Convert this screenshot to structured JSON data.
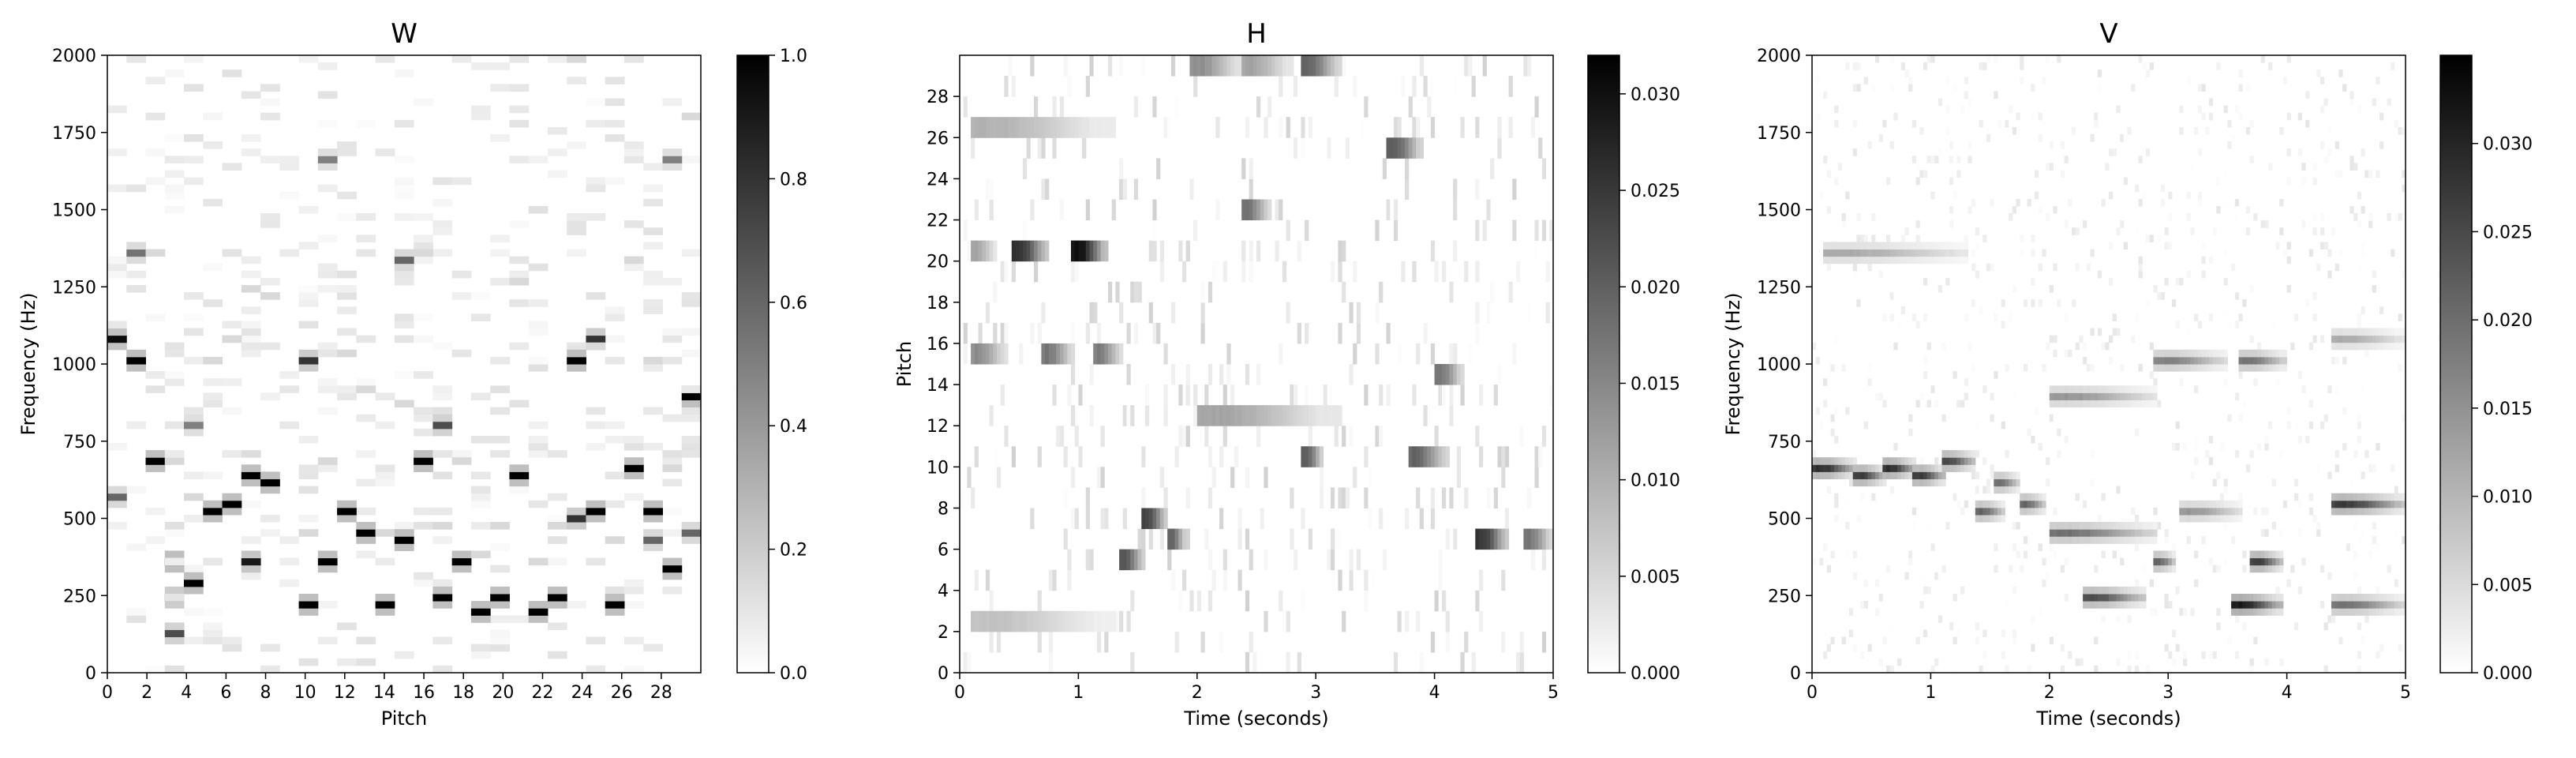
{
  "chart_data": [
    {
      "type": "heatmap",
      "title": "W",
      "xlabel": "Pitch",
      "ylabel": "Frequency (Hz)",
      "xlim": [
        0,
        30
      ],
      "ylim": [
        0,
        2000
      ],
      "xticks": [
        0,
        2,
        4,
        6,
        8,
        10,
        12,
        14,
        16,
        18,
        20,
        22,
        24,
        26,
        28
      ],
      "yticks": [
        0,
        250,
        500,
        750,
        1000,
        1250,
        1500,
        1750,
        2000
      ],
      "colorbar": {
        "min": 0.0,
        "max": 1.0,
        "ticks": [
          "0.0",
          "0.2",
          "0.4",
          "0.6",
          "0.8",
          "1.0"
        ],
        "colormap": "Greys"
      },
      "grid": false,
      "approx_peak_cells": [
        {
          "pitch": 0,
          "freq_hz": 1060,
          "value": 0.95
        },
        {
          "pitch": 0,
          "freq_hz": 560,
          "value": 0.6
        },
        {
          "pitch": 1,
          "freq_hz": 1000,
          "value": 1.0
        },
        {
          "pitch": 1,
          "freq_hz": 1340,
          "value": 0.55
        },
        {
          "pitch": 2,
          "freq_hz": 680,
          "value": 1.0
        },
        {
          "pitch": 3,
          "freq_hz": 340,
          "value": 1.0
        },
        {
          "pitch": 3,
          "freq_hz": 230,
          "value": 0.8
        },
        {
          "pitch": 3,
          "freq_hz": 120,
          "value": 0.7
        },
        {
          "pitch": 4,
          "freq_hz": 280,
          "value": 1.0
        },
        {
          "pitch": 4,
          "freq_hz": 790,
          "value": 0.5
        },
        {
          "pitch": 5,
          "freq_hz": 500,
          "value": 1.0
        },
        {
          "pitch": 6,
          "freq_hz": 540,
          "value": 1.0
        },
        {
          "pitch": 7,
          "freq_hz": 620,
          "value": 1.0
        },
        {
          "pitch": 7,
          "freq_hz": 350,
          "value": 0.9
        },
        {
          "pitch": 8,
          "freq_hz": 600,
          "value": 1.0
        },
        {
          "pitch": 10,
          "freq_hz": 220,
          "value": 1.0
        },
        {
          "pitch": 10,
          "freq_hz": 1000,
          "value": 0.8
        },
        {
          "pitch": 11,
          "freq_hz": 340,
          "value": 1.0
        },
        {
          "pitch": 11,
          "freq_hz": 1660,
          "value": 0.5
        },
        {
          "pitch": 12,
          "freq_hz": 510,
          "value": 1.0
        },
        {
          "pitch": 13,
          "freq_hz": 450,
          "value": 1.0
        },
        {
          "pitch": 14,
          "freq_hz": 220,
          "value": 1.0
        },
        {
          "pitch": 15,
          "freq_hz": 430,
          "value": 1.0
        },
        {
          "pitch": 15,
          "freq_hz": 1330,
          "value": 0.6
        },
        {
          "pitch": 16,
          "freq_hz": 670,
          "value": 1.0
        },
        {
          "pitch": 17,
          "freq_hz": 230,
          "value": 1.0
        },
        {
          "pitch": 17,
          "freq_hz": 790,
          "value": 0.7
        },
        {
          "pitch": 18,
          "freq_hz": 340,
          "value": 1.0
        },
        {
          "pitch": 19,
          "freq_hz": 190,
          "value": 1.0
        },
        {
          "pitch": 20,
          "freq_hz": 230,
          "value": 1.0
        },
        {
          "pitch": 21,
          "freq_hz": 630,
          "value": 1.0
        },
        {
          "pitch": 22,
          "freq_hz": 180,
          "value": 1.0
        },
        {
          "pitch": 23,
          "freq_hz": 230,
          "value": 1.0
        },
        {
          "pitch": 24,
          "freq_hz": 490,
          "value": 0.8
        },
        {
          "pitch": 24,
          "freq_hz": 990,
          "value": 1.0
        },
        {
          "pitch": 25,
          "freq_hz": 1060,
          "value": 0.8
        },
        {
          "pitch": 25,
          "freq_hz": 520,
          "value": 1.0
        },
        {
          "pitch": 26,
          "freq_hz": 210,
          "value": 1.0
        },
        {
          "pitch": 27,
          "freq_hz": 660,
          "value": 1.0
        },
        {
          "pitch": 28,
          "freq_hz": 500,
          "value": 1.0
        },
        {
          "pitch": 28,
          "freq_hz": 420,
          "value": 0.6
        },
        {
          "pitch": 29,
          "freq_hz": 330,
          "value": 1.0
        },
        {
          "pitch": 29,
          "freq_hz": 1660,
          "value": 0.5
        },
        {
          "pitch": 30,
          "freq_hz": 890,
          "value": 1.0
        },
        {
          "pitch": 30,
          "freq_hz": 450,
          "value": 0.6
        }
      ]
    },
    {
      "type": "heatmap",
      "title": "H",
      "xlabel": "Time (seconds)",
      "ylabel": "Pitch",
      "xlim": [
        0,
        5
      ],
      "ylim": [
        0,
        30
      ],
      "xticks": [
        0,
        1,
        2,
        3,
        4,
        5
      ],
      "yticks": [
        0,
        2,
        4,
        6,
        8,
        10,
        12,
        14,
        16,
        18,
        20,
        22,
        24,
        26,
        28
      ],
      "colorbar": {
        "min": 0.0,
        "max": 0.032,
        "ticks": [
          "0.000",
          "0.005",
          "0.010",
          "0.015",
          "0.020",
          "0.025",
          "0.030"
        ],
        "colormap": "Greys"
      },
      "grid": false,
      "approx_activations": [
        {
          "pitch": 20,
          "t_start": 0.45,
          "t_end": 0.75,
          "value": 0.028
        },
        {
          "pitch": 20,
          "t_start": 0.95,
          "t_end": 1.25,
          "value": 0.032
        },
        {
          "pitch": 20,
          "t_start": 0.1,
          "t_end": 0.3,
          "value": 0.012
        },
        {
          "pitch": 15,
          "t_start": 0.1,
          "t_end": 0.4,
          "value": 0.015
        },
        {
          "pitch": 15,
          "t_start": 0.7,
          "t_end": 0.95,
          "value": 0.018
        },
        {
          "pitch": 15,
          "t_start": 1.15,
          "t_end": 1.35,
          "value": 0.017
        },
        {
          "pitch": 7,
          "t_start": 1.55,
          "t_end": 1.75,
          "value": 0.025
        },
        {
          "pitch": 6,
          "t_start": 1.75,
          "t_end": 1.9,
          "value": 0.02
        },
        {
          "pitch": 5,
          "t_start": 1.35,
          "t_end": 1.55,
          "value": 0.022
        },
        {
          "pitch": 29,
          "t_start": 1.95,
          "t_end": 2.35,
          "value": 0.015
        },
        {
          "pitch": 29,
          "t_start": 2.4,
          "t_end": 2.8,
          "value": 0.012
        },
        {
          "pitch": 29,
          "t_start": 2.9,
          "t_end": 3.2,
          "value": 0.02
        },
        {
          "pitch": 12,
          "t_start": 2.0,
          "t_end": 3.2,
          "value": 0.012
        },
        {
          "pitch": 10,
          "t_start": 2.9,
          "t_end": 3.05,
          "value": 0.022
        },
        {
          "pitch": 10,
          "t_start": 3.8,
          "t_end": 4.1,
          "value": 0.02
        },
        {
          "pitch": 6,
          "t_start": 4.35,
          "t_end": 4.6,
          "value": 0.027
        },
        {
          "pitch": 6,
          "t_start": 4.75,
          "t_end": 5.0,
          "value": 0.018
        },
        {
          "pitch": 22,
          "t_start": 2.4,
          "t_end": 2.6,
          "value": 0.018
        },
        {
          "pitch": 25,
          "t_start": 3.6,
          "t_end": 3.9,
          "value": 0.022
        },
        {
          "pitch": 14,
          "t_start": 4.0,
          "t_end": 4.25,
          "value": 0.018
        },
        {
          "pitch": 26,
          "t_start": 0.1,
          "t_end": 1.3,
          "value": 0.01
        },
        {
          "pitch": 2,
          "t_start": 0.1,
          "t_end": 1.3,
          "value": 0.008
        }
      ]
    },
    {
      "type": "heatmap",
      "title": "V",
      "xlabel": "Time (seconds)",
      "ylabel": "Frequency (Hz)",
      "xlim": [
        0,
        5
      ],
      "ylim": [
        0,
        2000
      ],
      "xticks": [
        0,
        1,
        2,
        3,
        4,
        5
      ],
      "yticks": [
        0,
        250,
        500,
        750,
        1000,
        1250,
        1500,
        1750,
        2000
      ],
      "colorbar": {
        "min": 0.0,
        "max": 0.035,
        "ticks": [
          "0.000",
          "0.005",
          "0.010",
          "0.015",
          "0.020",
          "0.025",
          "0.030"
        ],
        "colormap": "Greys"
      },
      "grid": false,
      "approx_energy_regions": [
        {
          "freq_hz": 660,
          "t_start": 0.0,
          "t_end": 0.35,
          "value": 0.03
        },
        {
          "freq_hz": 630,
          "t_start": 0.35,
          "t_end": 0.6,
          "value": 0.028
        },
        {
          "freq_hz": 660,
          "t_start": 0.6,
          "t_end": 0.85,
          "value": 0.03
        },
        {
          "freq_hz": 630,
          "t_start": 0.85,
          "t_end": 1.1,
          "value": 0.028
        },
        {
          "freq_hz": 670,
          "t_start": 1.1,
          "t_end": 1.35,
          "value": 0.026
        },
        {
          "freq_hz": 500,
          "t_start": 1.4,
          "t_end": 1.6,
          "value": 0.022
        },
        {
          "freq_hz": 600,
          "t_start": 1.55,
          "t_end": 1.75,
          "value": 0.02
        },
        {
          "freq_hz": 540,
          "t_start": 1.75,
          "t_end": 1.95,
          "value": 0.022
        },
        {
          "freq_hz": 450,
          "t_start": 2.0,
          "t_end": 2.9,
          "value": 0.02
        },
        {
          "freq_hz": 890,
          "t_start": 2.0,
          "t_end": 2.9,
          "value": 0.015
        },
        {
          "freq_hz": 230,
          "t_start": 2.3,
          "t_end": 2.8,
          "value": 0.025
        },
        {
          "freq_hz": 340,
          "t_start": 2.9,
          "t_end": 3.05,
          "value": 0.022
        },
        {
          "freq_hz": 1000,
          "t_start": 2.9,
          "t_end": 3.5,
          "value": 0.018
        },
        {
          "freq_hz": 500,
          "t_start": 3.1,
          "t_end": 3.6,
          "value": 0.015
        },
        {
          "freq_hz": 210,
          "t_start": 3.55,
          "t_end": 3.95,
          "value": 0.032
        },
        {
          "freq_hz": 340,
          "t_start": 3.7,
          "t_end": 3.95,
          "value": 0.028
        },
        {
          "freq_hz": 1000,
          "t_start": 3.6,
          "t_end": 4.0,
          "value": 0.02
        },
        {
          "freq_hz": 530,
          "t_start": 4.4,
          "t_end": 5.0,
          "value": 0.028
        },
        {
          "freq_hz": 220,
          "t_start": 4.4,
          "t_end": 5.0,
          "value": 0.02
        },
        {
          "freq_hz": 1340,
          "t_start": 0.1,
          "t_end": 1.3,
          "value": 0.012
        },
        {
          "freq_hz": 1060,
          "t_start": 4.4,
          "t_end": 5.0,
          "value": 0.012
        }
      ]
    }
  ]
}
